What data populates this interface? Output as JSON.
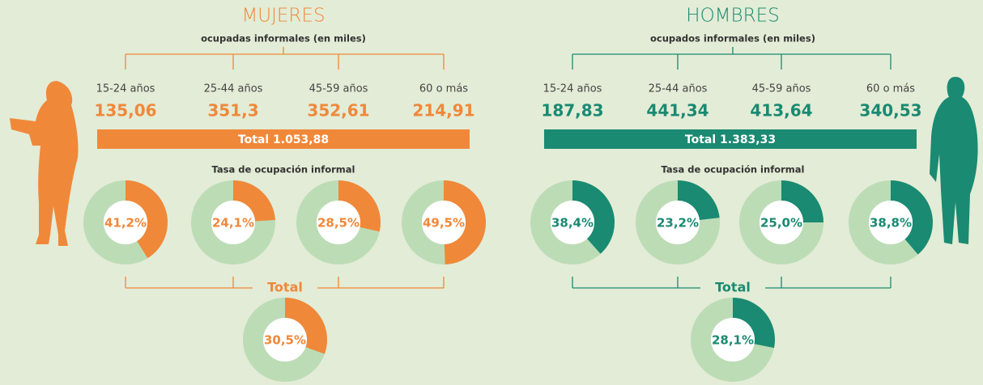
{
  "women": {
    "title": "MUJERES",
    "subtitle": "ocupadas informales (en miles)",
    "age_groups": [
      "15-24 años",
      "25-44 años",
      "45-59 años",
      "60 o más"
    ],
    "counts": [
      "135,06",
      "351,3",
      "352,61",
      "214,91"
    ],
    "total": "Total 1.053,88",
    "rate_title": "Tasa de ocupación informal",
    "rates": [
      41.2,
      24.1,
      28.5,
      49.5
    ],
    "rate_labels": [
      "41,2%",
      "24,1%",
      "28,5%",
      "49,5%"
    ],
    "total_rate_title": "Total",
    "total_rate": 30.5,
    "total_rate_label": "30,5%",
    "color": "#f0883a"
  },
  "men": {
    "title": "HOMBRES",
    "subtitle": "ocupados informales  (en miles)",
    "age_groups": [
      "15-24 años",
      "25-44 años",
      "45-59 años",
      "60 o más"
    ],
    "counts": [
      "187,83",
      "441,34",
      "413,64",
      "340,53"
    ],
    "total": "Total 1.383,33",
    "rate_title": "Tasa de ocupación informal",
    "rates": [
      38.4,
      23.2,
      25.0,
      38.8
    ],
    "rate_labels": [
      "38,4%",
      "23,2%",
      "25,0%",
      "38,8%"
    ],
    "total_rate_title": "Total",
    "total_rate": 28.1,
    "total_rate_label": "28,1%",
    "color": "#1a8a72"
  }
}
